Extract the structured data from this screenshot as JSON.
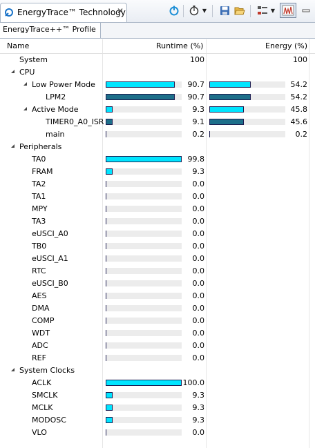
{
  "window": {
    "tab_title": "EnergyTrace™ Technology",
    "subtab_title": "EnergyTrace++™ Profile"
  },
  "columns": {
    "name": "Name",
    "runtime": "Runtime (%)",
    "energy": "Energy (%)"
  },
  "colors": {
    "bar_light": "#00e5ff",
    "bar_dark": "#1d6f8a",
    "track": "#ececec"
  },
  "rows": [
    {
      "label": "System",
      "level": 0,
      "expandable": false,
      "runtime": "100",
      "energy": "100",
      "runtime_bar": null,
      "energy_bar": null
    },
    {
      "label": "CPU",
      "level": 0,
      "expandable": true,
      "runtime": "",
      "energy": "",
      "runtime_bar": null,
      "energy_bar": null
    },
    {
      "label": "Low Power Mode",
      "level": 1,
      "expandable": true,
      "runtime": "90.7",
      "energy": "54.2",
      "runtime_bar": 0.907,
      "energy_bar": 0.542,
      "style": "light"
    },
    {
      "label": "LPM2",
      "level": 2,
      "expandable": false,
      "runtime": "90.7",
      "energy": "54.2",
      "runtime_bar": 0.907,
      "energy_bar": 0.542,
      "style": "dark"
    },
    {
      "label": "Active Mode",
      "level": 1,
      "expandable": true,
      "runtime": "9.3",
      "energy": "45.8",
      "runtime_bar": 0.093,
      "energy_bar": 0.458,
      "style": "light"
    },
    {
      "label": "TIMER0_A0_ISR",
      "level": 2,
      "expandable": false,
      "runtime": "9.1",
      "energy": "45.6",
      "runtime_bar": 0.091,
      "energy_bar": 0.456,
      "style": "dark"
    },
    {
      "label": "main",
      "level": 2,
      "expandable": false,
      "runtime": "0.2",
      "energy": "0.2",
      "runtime_bar": 0.002,
      "energy_bar": 0.002,
      "style": "dark"
    },
    {
      "label": "Peripherals",
      "level": 0,
      "expandable": true,
      "runtime": "",
      "energy": "",
      "runtime_bar": null,
      "energy_bar": null
    },
    {
      "label": "TA0",
      "level": 1,
      "expandable": false,
      "runtime": "99.8",
      "energy": "",
      "runtime_bar": 0.998,
      "energy_bar": null,
      "style": "light"
    },
    {
      "label": "FRAM",
      "level": 1,
      "expandable": false,
      "runtime": "9.3",
      "energy": "",
      "runtime_bar": 0.093,
      "energy_bar": null,
      "style": "light"
    },
    {
      "label": "TA2",
      "level": 1,
      "expandable": false,
      "runtime": "0.0",
      "energy": "",
      "runtime_bar": 0,
      "energy_bar": null,
      "style": "light"
    },
    {
      "label": "TA1",
      "level": 1,
      "expandable": false,
      "runtime": "0.0",
      "energy": "",
      "runtime_bar": 0,
      "energy_bar": null,
      "style": "light"
    },
    {
      "label": "MPY",
      "level": 1,
      "expandable": false,
      "runtime": "0.0",
      "energy": "",
      "runtime_bar": 0,
      "energy_bar": null,
      "style": "light"
    },
    {
      "label": "TA3",
      "level": 1,
      "expandable": false,
      "runtime": "0.0",
      "energy": "",
      "runtime_bar": 0,
      "energy_bar": null,
      "style": "light"
    },
    {
      "label": "eUSCI_A0",
      "level": 1,
      "expandable": false,
      "runtime": "0.0",
      "energy": "",
      "runtime_bar": 0,
      "energy_bar": null,
      "style": "light"
    },
    {
      "label": "TB0",
      "level": 1,
      "expandable": false,
      "runtime": "0.0",
      "energy": "",
      "runtime_bar": 0,
      "energy_bar": null,
      "style": "light"
    },
    {
      "label": "eUSCI_A1",
      "level": 1,
      "expandable": false,
      "runtime": "0.0",
      "energy": "",
      "runtime_bar": 0,
      "energy_bar": null,
      "style": "light"
    },
    {
      "label": "RTC",
      "level": 1,
      "expandable": false,
      "runtime": "0.0",
      "energy": "",
      "runtime_bar": 0,
      "energy_bar": null,
      "style": "light"
    },
    {
      "label": "eUSCI_B0",
      "level": 1,
      "expandable": false,
      "runtime": "0.0",
      "energy": "",
      "runtime_bar": 0,
      "energy_bar": null,
      "style": "light"
    },
    {
      "label": "AES",
      "level": 1,
      "expandable": false,
      "runtime": "0.0",
      "energy": "",
      "runtime_bar": 0,
      "energy_bar": null,
      "style": "light"
    },
    {
      "label": "DMA",
      "level": 1,
      "expandable": false,
      "runtime": "0.0",
      "energy": "",
      "runtime_bar": 0,
      "energy_bar": null,
      "style": "light"
    },
    {
      "label": "COMP",
      "level": 1,
      "expandable": false,
      "runtime": "0.0",
      "energy": "",
      "runtime_bar": 0,
      "energy_bar": null,
      "style": "light"
    },
    {
      "label": "WDT",
      "level": 1,
      "expandable": false,
      "runtime": "0.0",
      "energy": "",
      "runtime_bar": 0,
      "energy_bar": null,
      "style": "light"
    },
    {
      "label": "ADC",
      "level": 1,
      "expandable": false,
      "runtime": "0.0",
      "energy": "",
      "runtime_bar": 0,
      "energy_bar": null,
      "style": "light"
    },
    {
      "label": "REF",
      "level": 1,
      "expandable": false,
      "runtime": "0.0",
      "energy": "",
      "runtime_bar": 0,
      "energy_bar": null,
      "style": "light"
    },
    {
      "label": "System Clocks",
      "level": 0,
      "expandable": true,
      "runtime": "",
      "energy": "",
      "runtime_bar": null,
      "energy_bar": null
    },
    {
      "label": "ACLK",
      "level": 1,
      "expandable": false,
      "runtime": "100.0",
      "energy": "",
      "runtime_bar": 1.0,
      "energy_bar": null,
      "style": "light"
    },
    {
      "label": "SMCLK",
      "level": 1,
      "expandable": false,
      "runtime": "9.3",
      "energy": "",
      "runtime_bar": 0.093,
      "energy_bar": null,
      "style": "light"
    },
    {
      "label": "MCLK",
      "level": 1,
      "expandable": false,
      "runtime": "9.3",
      "energy": "",
      "runtime_bar": 0.093,
      "energy_bar": null,
      "style": "light"
    },
    {
      "label": "MODOSC",
      "level": 1,
      "expandable": false,
      "runtime": "9.3",
      "energy": "",
      "runtime_bar": 0.093,
      "energy_bar": null,
      "style": "light"
    },
    {
      "label": "VLO",
      "level": 1,
      "expandable": false,
      "runtime": "0.0",
      "energy": "",
      "runtime_bar": 0,
      "energy_bar": null,
      "style": "light"
    }
  ]
}
